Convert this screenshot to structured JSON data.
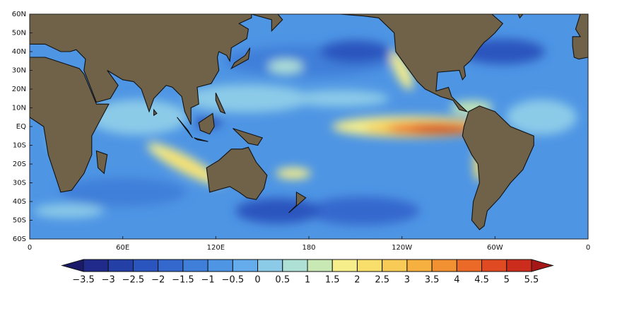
{
  "map": {
    "lat_labels": [
      "60N",
      "50N",
      "40N",
      "30N",
      "20N",
      "10N",
      "EQ",
      "10S",
      "20S",
      "30S",
      "40S",
      "50S",
      "60S"
    ],
    "lon_labels": [
      "0",
      "60E",
      "120E",
      "180",
      "120W",
      "60W",
      "0"
    ]
  },
  "colorbar": {
    "labels": [
      "−3.5",
      "−3",
      "−2.5",
      "−2",
      "−1.5",
      "−1",
      "−0.5",
      "0",
      "0.5",
      "1",
      "1.5",
      "2",
      "2.5",
      "3",
      "3.5",
      "4",
      "4.5",
      "5",
      "5.5"
    ],
    "colors": [
      "#1b1a6a",
      "#1f2a8a",
      "#2440a6",
      "#2a55be",
      "#3468cd",
      "#3f7fd9",
      "#4e95e4",
      "#64aceb",
      "#8ccbe8",
      "#aee0d6",
      "#c8e8b4",
      "#f6ee8a",
      "#f8df6c",
      "#f7cb55",
      "#f5b040",
      "#f29132",
      "#ec6a28",
      "#e04a22",
      "#cb2c1c",
      "#a61818"
    ]
  }
}
